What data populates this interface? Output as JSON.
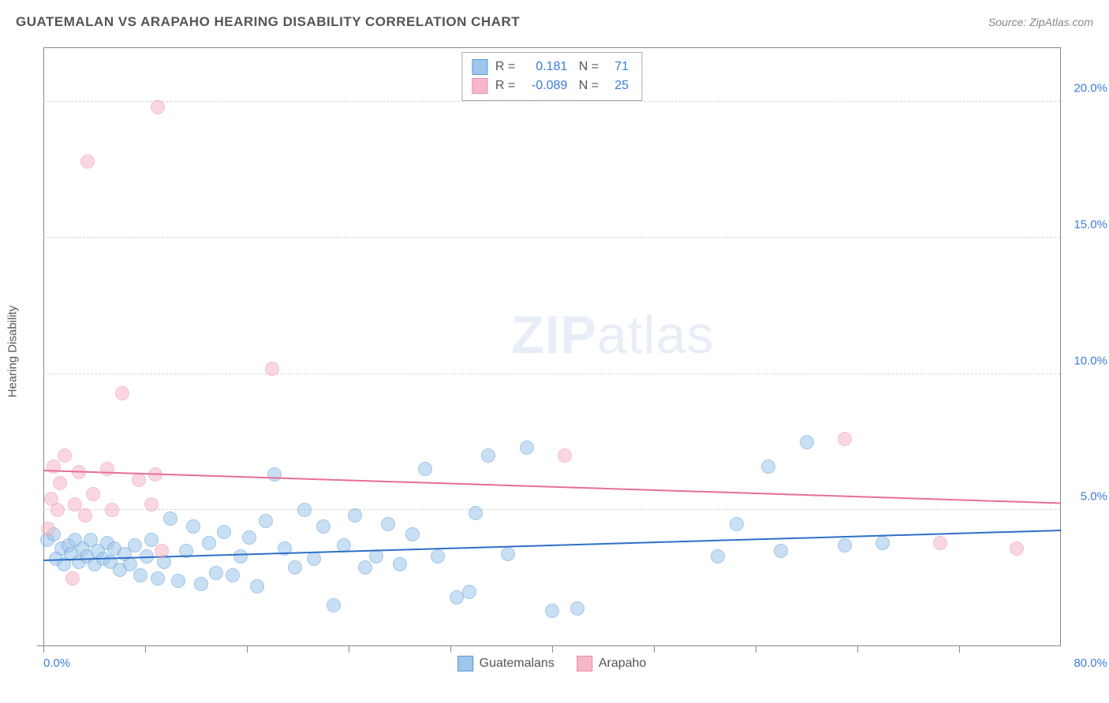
{
  "title": "GUATEMALAN VS ARAPAHO HEARING DISABILITY CORRELATION CHART",
  "source_label": "Source: ZipAtlas.com",
  "y_axis_label": "Hearing Disability",
  "watermark": {
    "bold": "ZIP",
    "rest": "atlas"
  },
  "chart": {
    "type": "scatter",
    "xlim": [
      0,
      80
    ],
    "ylim": [
      0,
      22
    ],
    "x_ticks_minor": [
      8,
      16,
      24,
      32,
      40,
      48,
      56,
      64,
      72
    ],
    "x_tick_labels": [
      {
        "pos": 0,
        "label": "0.0%",
        "align": "left"
      },
      {
        "pos": 80,
        "label": "80.0%",
        "align": "right"
      }
    ],
    "y_grid": [
      5,
      10,
      15,
      20
    ],
    "y_tick_labels": [
      {
        "pos": 5,
        "label": "5.0%"
      },
      {
        "pos": 10,
        "label": "10.0%"
      },
      {
        "pos": 15,
        "label": "15.0%"
      },
      {
        "pos": 20,
        "label": "20.0%"
      }
    ],
    "marker_radius": 9,
    "marker_opacity": 0.55,
    "background_color": "#ffffff",
    "grid_color": "#d5d5d5",
    "axis_color": "#888888"
  },
  "series": [
    {
      "name": "Guatemalans",
      "color_fill": "#9ec5ec",
      "color_stroke": "#5a9bd5",
      "trend_color": "#2f6fc7",
      "R": "0.181",
      "N": "71",
      "trend": {
        "x1": 0,
        "y1": 3.2,
        "x2": 80,
        "y2": 4.3
      },
      "points_xy": [
        [
          0.3,
          3.9
        ],
        [
          0.8,
          4.1
        ],
        [
          1.0,
          3.2
        ],
        [
          1.4,
          3.6
        ],
        [
          1.6,
          3.0
        ],
        [
          2.0,
          3.7
        ],
        [
          2.2,
          3.4
        ],
        [
          2.5,
          3.9
        ],
        [
          2.8,
          3.1
        ],
        [
          3.1,
          3.6
        ],
        [
          3.4,
          3.3
        ],
        [
          3.7,
          3.9
        ],
        [
          4.0,
          3.0
        ],
        [
          4.3,
          3.5
        ],
        [
          4.7,
          3.2
        ],
        [
          5.0,
          3.8
        ],
        [
          5.3,
          3.1
        ],
        [
          5.6,
          3.6
        ],
        [
          6.0,
          2.8
        ],
        [
          6.4,
          3.4
        ],
        [
          6.8,
          3.0
        ],
        [
          7.2,
          3.7
        ],
        [
          7.6,
          2.6
        ],
        [
          8.1,
          3.3
        ],
        [
          8.5,
          3.9
        ],
        [
          9.0,
          2.5
        ],
        [
          9.5,
          3.1
        ],
        [
          10.0,
          4.7
        ],
        [
          10.6,
          2.4
        ],
        [
          11.2,
          3.5
        ],
        [
          11.8,
          4.4
        ],
        [
          12.4,
          2.3
        ],
        [
          13.0,
          3.8
        ],
        [
          13.6,
          2.7
        ],
        [
          14.2,
          4.2
        ],
        [
          14.9,
          2.6
        ],
        [
          15.5,
          3.3
        ],
        [
          16.2,
          4.0
        ],
        [
          16.8,
          2.2
        ],
        [
          17.5,
          4.6
        ],
        [
          18.2,
          6.3
        ],
        [
          19.0,
          3.6
        ],
        [
          19.8,
          2.9
        ],
        [
          20.5,
          5.0
        ],
        [
          21.3,
          3.2
        ],
        [
          22.0,
          4.4
        ],
        [
          22.8,
          1.5
        ],
        [
          23.6,
          3.7
        ],
        [
          24.5,
          4.8
        ],
        [
          25.3,
          2.9
        ],
        [
          26.2,
          3.3
        ],
        [
          27.1,
          4.5
        ],
        [
          28.0,
          3.0
        ],
        [
          29.0,
          4.1
        ],
        [
          30.0,
          6.5
        ],
        [
          31.0,
          3.3
        ],
        [
          32.5,
          1.8
        ],
        [
          33.5,
          2.0
        ],
        [
          34.0,
          4.9
        ],
        [
          35.0,
          7.0
        ],
        [
          36.5,
          3.4
        ],
        [
          38.0,
          7.3
        ],
        [
          40.0,
          1.3
        ],
        [
          42.0,
          1.4
        ],
        [
          53.0,
          3.3
        ],
        [
          54.5,
          4.5
        ],
        [
          57.0,
          6.6
        ],
        [
          58.0,
          3.5
        ],
        [
          60.0,
          7.5
        ],
        [
          63.0,
          3.7
        ],
        [
          66.0,
          3.8
        ]
      ]
    },
    {
      "name": "Arapaho",
      "color_fill": "#f6b8c8",
      "color_stroke": "#e98fab",
      "trend_color": "#e76f94",
      "R": "-0.089",
      "N": "25",
      "trend": {
        "x1": 0,
        "y1": 6.5,
        "x2": 80,
        "y2": 5.3
      },
      "points_xy": [
        [
          0.4,
          4.3
        ],
        [
          0.6,
          5.4
        ],
        [
          0.8,
          6.6
        ],
        [
          1.1,
          5.0
        ],
        [
          1.3,
          6.0
        ],
        [
          1.7,
          7.0
        ],
        [
          2.3,
          2.5
        ],
        [
          2.5,
          5.2
        ],
        [
          2.8,
          6.4
        ],
        [
          3.3,
          4.8
        ],
        [
          3.5,
          17.8
        ],
        [
          3.9,
          5.6
        ],
        [
          5.0,
          6.5
        ],
        [
          5.4,
          5.0
        ],
        [
          6.2,
          9.3
        ],
        [
          7.5,
          6.1
        ],
        [
          8.5,
          5.2
        ],
        [
          8.8,
          6.3
        ],
        [
          9.0,
          19.8
        ],
        [
          9.3,
          3.5
        ],
        [
          18.0,
          10.2
        ],
        [
          41.0,
          7.0
        ],
        [
          63.0,
          7.6
        ],
        [
          70.5,
          3.8
        ],
        [
          76.5,
          3.6
        ]
      ]
    }
  ],
  "legend_items": [
    {
      "label": "Guatemalans",
      "fill": "#9ec5ec",
      "stroke": "#5a9bd5"
    },
    {
      "label": "Arapaho",
      "fill": "#f6b8c8",
      "stroke": "#e98fab"
    }
  ]
}
